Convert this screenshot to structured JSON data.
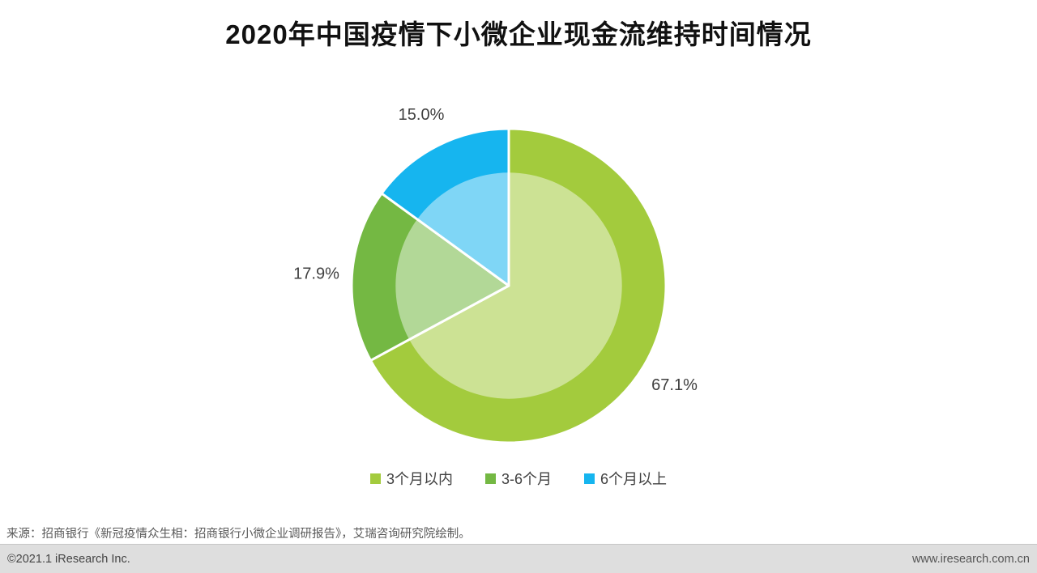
{
  "title": "2020年中国疫情下小微企业现金流维持时间情况",
  "chart_data": {
    "type": "pie",
    "title": "2020年中国疫情下小微企业现金流维持时间情况",
    "start_angle": "12 o'clock",
    "direction": "clockwise",
    "legend_position": "bottom",
    "inner_overlay": "lighter concentric circle at 72% radius",
    "slices": [
      {
        "label": "3个月以内",
        "value": 67.1,
        "display": "67.1%",
        "color": "#a3cb3d"
      },
      {
        "label": "3-6个月",
        "value": 17.9,
        "display": "17.9%",
        "color": "#74b843"
      },
      {
        "label": "6个月以上",
        "value": 15.0,
        "display": "15.0%",
        "color": "#16b5ef"
      }
    ]
  },
  "source_note": "来源：招商银行《新冠疫情众生相：招商银行小微企业调研报告》，艾瑞咨询研究院绘制。",
  "footer": {
    "left": "©2021.1 iResearch Inc.",
    "right": "www.iresearch.com.cn"
  }
}
